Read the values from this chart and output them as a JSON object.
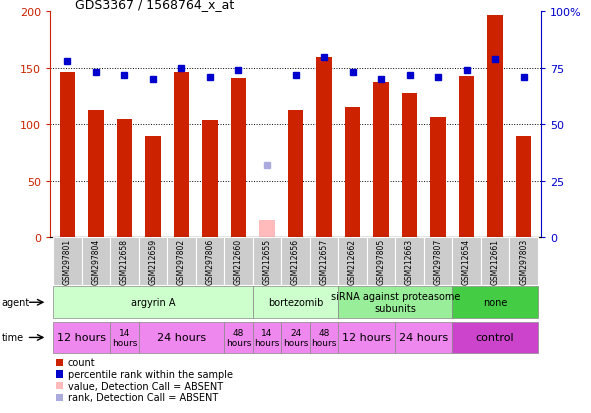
{
  "title": "GDS3367 / 1568764_x_at",
  "samples": [
    "GSM297801",
    "GSM297804",
    "GSM212658",
    "GSM212659",
    "GSM297802",
    "GSM297806",
    "GSM212660",
    "GSM212655",
    "GSM212656",
    "GSM212657",
    "GSM212662",
    "GSM297805",
    "GSM212663",
    "GSM297807",
    "GSM212654",
    "GSM212661",
    "GSM297803"
  ],
  "counts": [
    146,
    113,
    105,
    90,
    146,
    104,
    141,
    15,
    113,
    160,
    115,
    137,
    128,
    106,
    143,
    197,
    90
  ],
  "absent_count_idx": 7,
  "percentile_ranks": [
    78,
    73,
    72,
    70,
    75,
    71,
    74,
    32,
    72,
    80,
    73,
    70,
    72,
    71,
    74,
    79,
    71
  ],
  "absent_rank_idx": 7,
  "ylim_left": [
    0,
    200
  ],
  "ylim_right": [
    0,
    100
  ],
  "yticks_left": [
    0,
    50,
    100,
    150,
    200
  ],
  "yticks_right": [
    0,
    25,
    50,
    75,
    100
  ],
  "agent_groups": [
    {
      "label": "argyrin A",
      "start": 0,
      "end": 7,
      "color": "#ccffcc"
    },
    {
      "label": "bortezomib",
      "start": 7,
      "end": 10,
      "color": "#ccffcc"
    },
    {
      "label": "siRNA against proteasome\nsubunits",
      "start": 10,
      "end": 14,
      "color": "#99ee99"
    },
    {
      "label": "none",
      "start": 14,
      "end": 17,
      "color": "#44cc44"
    }
  ],
  "time_groups": [
    {
      "label": "12 hours",
      "start": 0,
      "end": 2,
      "color": "#ee88ee",
      "fontsize": 8
    },
    {
      "label": "14\nhours",
      "start": 2,
      "end": 3,
      "color": "#ee88ee",
      "fontsize": 6.5
    },
    {
      "label": "24 hours",
      "start": 3,
      "end": 6,
      "color": "#ee88ee",
      "fontsize": 8
    },
    {
      "label": "48\nhours",
      "start": 6,
      "end": 7,
      "color": "#ee88ee",
      "fontsize": 6.5
    },
    {
      "label": "14\nhours",
      "start": 7,
      "end": 8,
      "color": "#ee88ee",
      "fontsize": 6.5
    },
    {
      "label": "24\nhours",
      "start": 8,
      "end": 9,
      "color": "#ee88ee",
      "fontsize": 6.5
    },
    {
      "label": "48\nhours",
      "start": 9,
      "end": 10,
      "color": "#ee88ee",
      "fontsize": 6.5
    },
    {
      "label": "12 hours",
      "start": 10,
      "end": 12,
      "color": "#ee88ee",
      "fontsize": 8
    },
    {
      "label": "24 hours",
      "start": 12,
      "end": 14,
      "color": "#ee88ee",
      "fontsize": 8
    },
    {
      "label": "control",
      "start": 14,
      "end": 17,
      "color": "#cc44cc",
      "fontsize": 8
    }
  ],
  "bar_color": "#cc2200",
  "absent_bar_color": "#ffbbbb",
  "dot_color": "#0000cc",
  "absent_dot_color": "#aaaadd"
}
